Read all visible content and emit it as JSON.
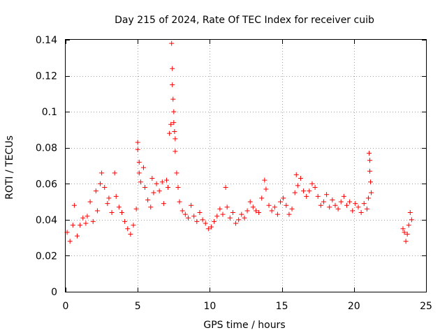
{
  "chart_data": {
    "type": "scatter",
    "title": "Day 215 of 2024, Rate Of TEC Index for receiver cuib",
    "xlabel": "GPS time / hours",
    "ylabel": "ROTI / TECUs",
    "xlim": [
      0,
      25
    ],
    "ylim": [
      0,
      0.14
    ],
    "x_ticks": [
      0,
      5,
      10,
      15,
      20,
      25
    ],
    "x_tick_labels": [
      "0",
      "5",
      "10",
      "15",
      "20",
      "25"
    ],
    "y_ticks": [
      0,
      0.02,
      0.04,
      0.06,
      0.08,
      0.1,
      0.12,
      0.14
    ],
    "y_tick_labels": [
      "0",
      "0.02",
      "0.04",
      "0.06",
      "0.08",
      "0.1",
      "0.12",
      "0.14"
    ],
    "grid": true,
    "marker": "+",
    "color": "#ff0000",
    "series": [
      {
        "name": "ROTI",
        "points": [
          [
            0.1,
            0.033
          ],
          [
            0.3,
            0.028
          ],
          [
            0.5,
            0.037
          ],
          [
            0.6,
            0.048
          ],
          [
            0.8,
            0.031
          ],
          [
            1.0,
            0.037
          ],
          [
            1.2,
            0.041
          ],
          [
            1.4,
            0.038
          ],
          [
            1.5,
            0.042
          ],
          [
            1.7,
            0.05
          ],
          [
            1.9,
            0.039
          ],
          [
            2.1,
            0.056
          ],
          [
            2.2,
            0.045
          ],
          [
            2.4,
            0.06
          ],
          [
            2.5,
            0.066
          ],
          [
            2.7,
            0.058
          ],
          [
            2.9,
            0.049
          ],
          [
            3.0,
            0.052
          ],
          [
            3.2,
            0.044
          ],
          [
            3.4,
            0.066
          ],
          [
            3.5,
            0.053
          ],
          [
            3.7,
            0.047
          ],
          [
            3.9,
            0.044
          ],
          [
            4.1,
            0.039
          ],
          [
            4.3,
            0.035
          ],
          [
            4.5,
            0.032
          ],
          [
            4.7,
            0.037
          ],
          [
            4.9,
            0.046
          ],
          [
            5.0,
            0.083
          ],
          [
            5.0,
            0.079
          ],
          [
            5.1,
            0.072
          ],
          [
            5.1,
            0.066
          ],
          [
            5.2,
            0.061
          ],
          [
            5.4,
            0.069
          ],
          [
            5.5,
            0.058
          ],
          [
            5.7,
            0.051
          ],
          [
            5.9,
            0.047
          ],
          [
            6.0,
            0.063
          ],
          [
            6.1,
            0.055
          ],
          [
            6.3,
            0.06
          ],
          [
            6.5,
            0.056
          ],
          [
            6.7,
            0.061
          ],
          [
            6.8,
            0.049
          ],
          [
            7.0,
            0.062
          ],
          [
            7.1,
            0.058
          ],
          [
            7.2,
            0.088
          ],
          [
            7.3,
            0.093
          ],
          [
            7.35,
            0.138
          ],
          [
            7.4,
            0.124
          ],
          [
            7.4,
            0.115
          ],
          [
            7.45,
            0.107
          ],
          [
            7.5,
            0.1
          ],
          [
            7.5,
            0.094
          ],
          [
            7.55,
            0.089
          ],
          [
            7.6,
            0.085
          ],
          [
            7.6,
            0.078
          ],
          [
            7.7,
            0.066
          ],
          [
            7.8,
            0.058
          ],
          [
            7.9,
            0.05
          ],
          [
            8.1,
            0.045
          ],
          [
            8.3,
            0.043
          ],
          [
            8.5,
            0.041
          ],
          [
            8.7,
            0.048
          ],
          [
            8.9,
            0.042
          ],
          [
            9.1,
            0.039
          ],
          [
            9.3,
            0.044
          ],
          [
            9.5,
            0.04
          ],
          [
            9.7,
            0.038
          ],
          [
            9.9,
            0.035
          ],
          [
            10.1,
            0.036
          ],
          [
            10.3,
            0.039
          ],
          [
            10.5,
            0.042
          ],
          [
            10.7,
            0.046
          ],
          [
            10.9,
            0.043
          ],
          [
            11.1,
            0.058
          ],
          [
            11.2,
            0.047
          ],
          [
            11.4,
            0.041
          ],
          [
            11.6,
            0.044
          ],
          [
            11.8,
            0.038
          ],
          [
            12.0,
            0.04
          ],
          [
            12.2,
            0.043
          ],
          [
            12.4,
            0.041
          ],
          [
            12.6,
            0.045
          ],
          [
            12.8,
            0.05
          ],
          [
            13.0,
            0.047
          ],
          [
            13.2,
            0.045
          ],
          [
            13.4,
            0.044
          ],
          [
            13.6,
            0.052
          ],
          [
            13.8,
            0.062
          ],
          [
            13.9,
            0.057
          ],
          [
            14.1,
            0.048
          ],
          [
            14.3,
            0.045
          ],
          [
            14.5,
            0.047
          ],
          [
            14.7,
            0.043
          ],
          [
            14.9,
            0.05
          ],
          [
            15.1,
            0.052
          ],
          [
            15.3,
            0.048
          ],
          [
            15.5,
            0.043
          ],
          [
            15.7,
            0.046
          ],
          [
            15.9,
            0.055
          ],
          [
            16.0,
            0.065
          ],
          [
            16.1,
            0.059
          ],
          [
            16.3,
            0.063
          ],
          [
            16.5,
            0.056
          ],
          [
            16.7,
            0.053
          ],
          [
            16.9,
            0.056
          ],
          [
            17.1,
            0.06
          ],
          [
            17.3,
            0.058
          ],
          [
            17.5,
            0.053
          ],
          [
            17.7,
            0.048
          ],
          [
            17.9,
            0.05
          ],
          [
            18.1,
            0.054
          ],
          [
            18.3,
            0.047
          ],
          [
            18.5,
            0.051
          ],
          [
            18.7,
            0.048
          ],
          [
            18.9,
            0.046
          ],
          [
            19.1,
            0.05
          ],
          [
            19.3,
            0.053
          ],
          [
            19.5,
            0.048
          ],
          [
            19.7,
            0.05
          ],
          [
            19.9,
            0.045
          ],
          [
            20.1,
            0.049
          ],
          [
            20.3,
            0.047
          ],
          [
            20.5,
            0.044
          ],
          [
            20.7,
            0.049
          ],
          [
            20.9,
            0.046
          ],
          [
            21.0,
            0.052
          ],
          [
            21.05,
            0.077
          ],
          [
            21.1,
            0.073
          ],
          [
            21.1,
            0.067
          ],
          [
            21.15,
            0.061
          ],
          [
            21.2,
            0.055
          ],
          [
            23.4,
            0.035
          ],
          [
            23.5,
            0.033
          ],
          [
            23.6,
            0.028
          ],
          [
            23.7,
            0.032
          ],
          [
            23.8,
            0.037
          ],
          [
            23.9,
            0.044
          ],
          [
            24.0,
            0.04
          ]
        ]
      }
    ]
  }
}
